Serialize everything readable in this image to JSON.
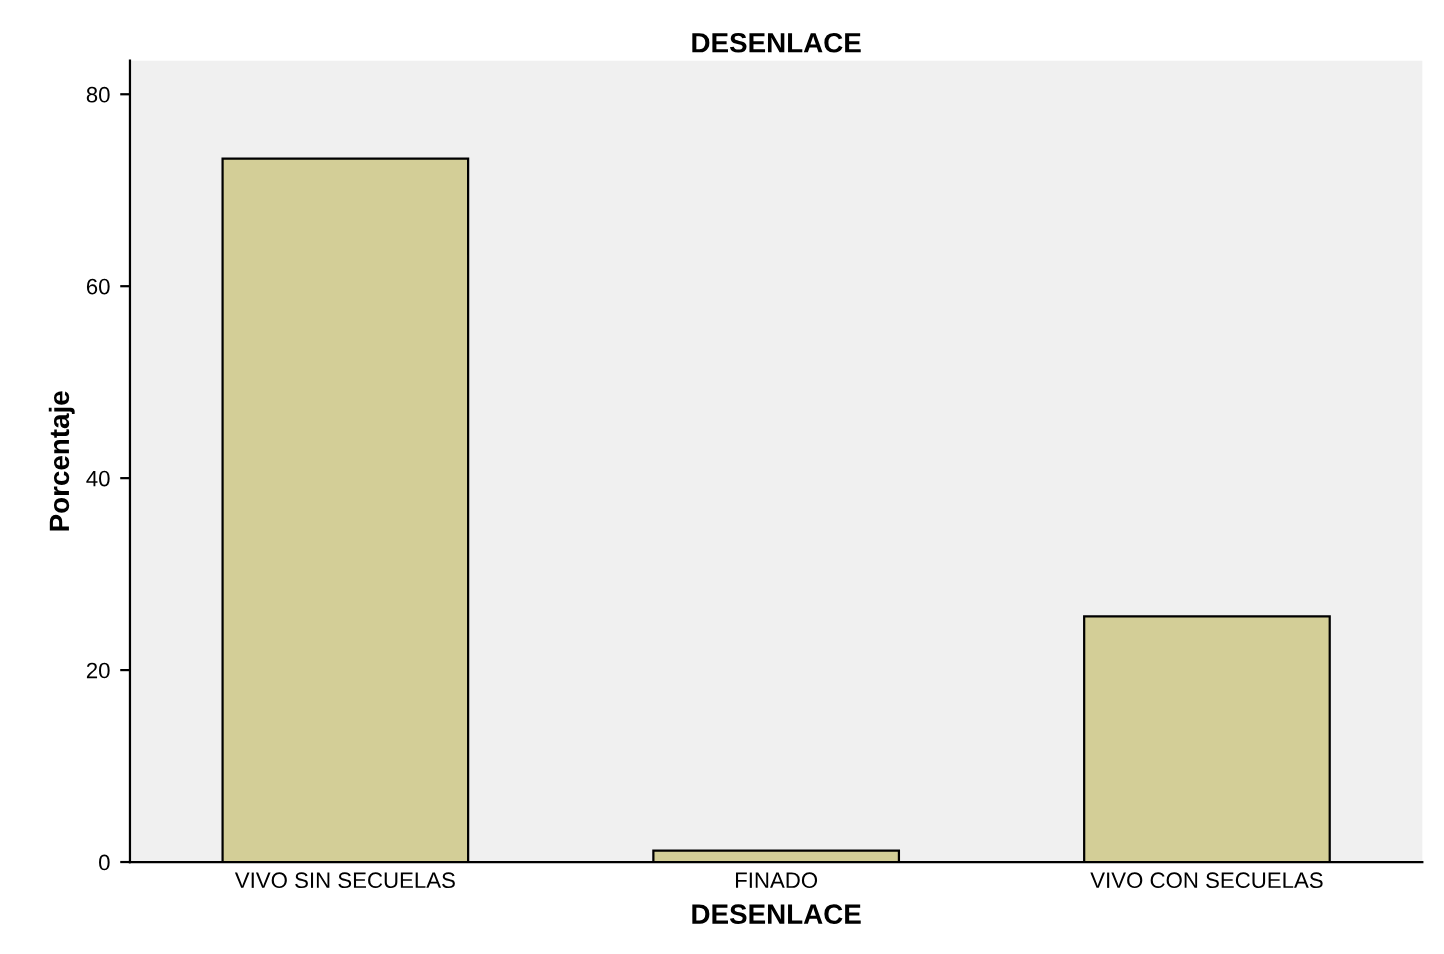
{
  "chart_data": {
    "type": "bar",
    "title": "DESENLACE",
    "xlabel": "DESENLACE",
    "ylabel": "Porcentaje",
    "categories": [
      "VIVO SIN SECUELAS",
      "FINADO",
      "VIVO CON SECUELAS"
    ],
    "values": [
      73.3,
      1.2,
      25.6
    ],
    "color": "#d3ce97",
    "ylim": [
      0,
      83.5
    ],
    "yticks": [
      0,
      20,
      40,
      60,
      80
    ],
    "grid": false
  }
}
